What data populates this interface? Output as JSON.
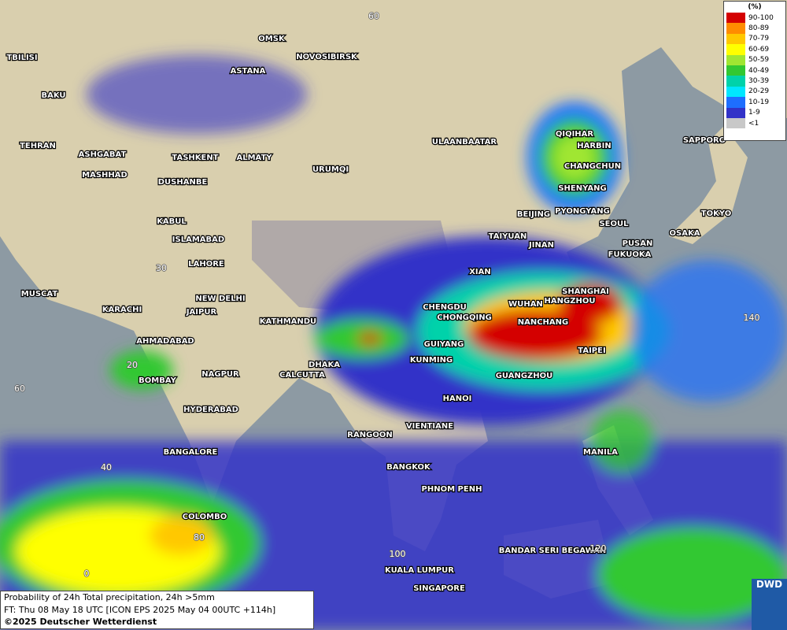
{
  "map": {
    "cities": [
      "OMSK",
      "NOVOSIBIRSK",
      "TBILISI",
      "ASTANA",
      "BAKU",
      "TEHRAN",
      "ASHGABAT",
      "MASHHAD",
      "TASHKENT",
      "ALMATY",
      "DUSHANBE",
      "URUMQI",
      "ULAANBAATAR",
      "QIQIHAR",
      "HARBIN",
      "CHANGCHUN",
      "SHENYANG",
      "SAPPORO",
      "BEIJING",
      "PYONGYANG",
      "SEOUL",
      "TOKYO",
      "OSAKA",
      "PUSAN",
      "FUKUOKA",
      "KABUL",
      "ISLAMABAD",
      "TAIYUAN",
      "JINAN",
      "LAHORE",
      "XIAN",
      "MUSCAT",
      "NEW DELHI",
      "SHANGHAI",
      "HANGZHOU",
      "WUHAN",
      "CHENGDU",
      "KARACHI",
      "JAIPUR",
      "KATHMANDU",
      "CHONGQING",
      "NANCHANG",
      "AHMADABAD",
      "GUIYANG",
      "TAIPEI",
      "KUNMING",
      "DHAKA",
      "CALCUTTA",
      "NAGPUR",
      "GUANGZHOU",
      "BOMBAY",
      "HANOI",
      "HYDERABAD",
      "VIENTIANE",
      "RANGOON",
      "MANILA",
      "BANGALORE",
      "BANGKOK",
      "PHNOM PENH",
      "COLOMBO",
      "BANDAR SERI BEGAWAN",
      "KUALA LUMPUR",
      "SINGAPORE"
    ],
    "grid_labels": [
      "60",
      "30",
      "20",
      "60",
      "40",
      "80",
      "0",
      "100",
      "120",
      "140"
    ],
    "legend": {
      "unit": "(%)",
      "entries": [
        {
          "label": "90-100",
          "color": "#d40000"
        },
        {
          "label": "80-89",
          "color": "#ff8c00"
        },
        {
          "label": "70-79",
          "color": "#ffc800"
        },
        {
          "label": "60-69",
          "color": "#ffff00"
        },
        {
          "label": "50-59",
          "color": "#a0e632"
        },
        {
          "label": "40-49",
          "color": "#32c832"
        },
        {
          "label": "30-39",
          "color": "#00d2aa"
        },
        {
          "label": "20-29",
          "color": "#00e6ff"
        },
        {
          "label": "10-19",
          "color": "#1e6eff"
        },
        {
          "label": "1-9",
          "color": "#3232c8"
        },
        {
          "label": "<1",
          "color": "#c8c8c8"
        }
      ]
    },
    "footer": {
      "line1": "Probability of 24h Total precipitation, 24h >5mm",
      "line2": "FT: Thu 08 May 18 UTC [ICON EPS 2025 May 04 00UTC +114h]",
      "line3": "©2025 Deutscher Wetterdienst"
    },
    "logo": "DWD"
  }
}
